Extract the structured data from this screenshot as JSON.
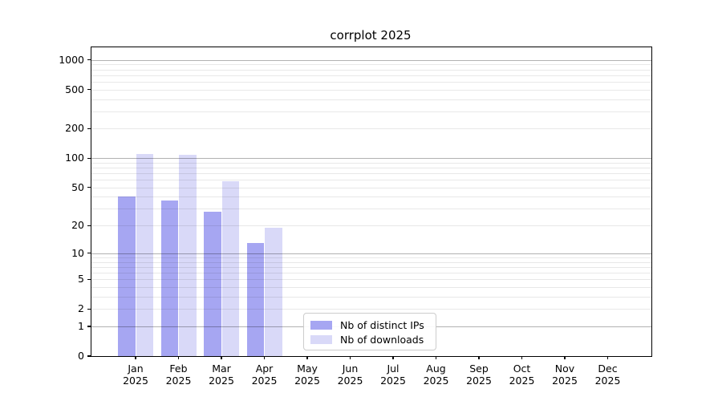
{
  "chart_data": {
    "type": "bar",
    "title": "corrplot 2025",
    "yscale": "log1p",
    "ylim": [
      0,
      1340
    ],
    "grid": true,
    "legend_position": "inside lower-center",
    "y_ticks": [
      0,
      1,
      2,
      5,
      10,
      20,
      50,
      100,
      200,
      500,
      1000
    ],
    "y_major_gridlines": [
      1,
      10,
      100,
      1000
    ],
    "categories": [
      "Jan 2025",
      "Feb 2025",
      "Mar 2025",
      "Apr 2025",
      "May 2025",
      "Jun 2025",
      "Jul 2025",
      "Aug 2025",
      "Sep 2025",
      "Oct 2025",
      "Nov 2025",
      "Dec 2025"
    ],
    "series": [
      {
        "name": "Nb of distinct IPs",
        "color": "#a6a6f2",
        "values": [
          40,
          37,
          28,
          13,
          null,
          null,
          null,
          null,
          null,
          null,
          null,
          null
        ]
      },
      {
        "name": "Nb of downloads",
        "color": "#d9d9f8",
        "values": [
          110,
          108,
          58,
          19,
          null,
          null,
          null,
          null,
          null,
          null,
          null,
          null
        ]
      }
    ]
  }
}
